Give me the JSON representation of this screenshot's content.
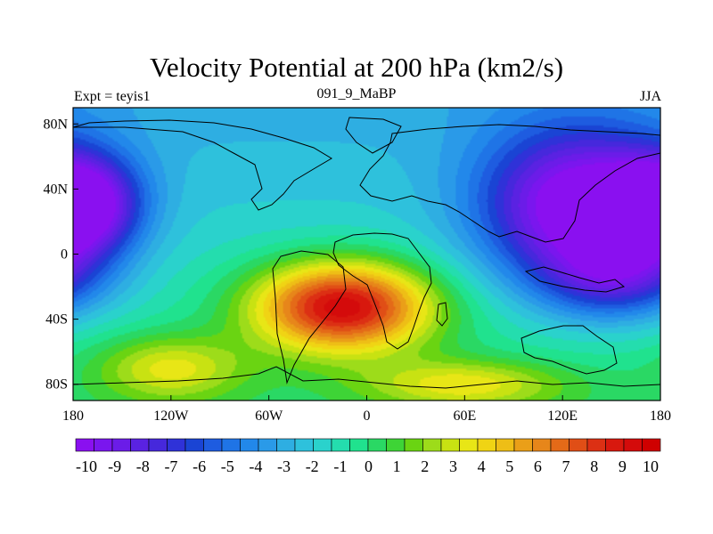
{
  "chart_data": {
    "type": "heatmap",
    "title": "Velocity Potential at 200 hPa (km2/s)",
    "left_label": "Expt = teyis1",
    "center_label": "091_9_MaBP",
    "right_label": "JJA",
    "x_range": [
      -180,
      180
    ],
    "y_range": [
      -90,
      90
    ],
    "x_ticks": [
      {
        "value": -180,
        "label": "180"
      },
      {
        "value": -120,
        "label": "120W"
      },
      {
        "value": -60,
        "label": "60W"
      },
      {
        "value": 0,
        "label": "0"
      },
      {
        "value": 60,
        "label": "60E"
      },
      {
        "value": 120,
        "label": "120E"
      },
      {
        "value": 180,
        "label": "180"
      }
    ],
    "y_ticks": [
      {
        "value": 80,
        "label": "80N"
      },
      {
        "value": 40,
        "label": "40N"
      },
      {
        "value": 0,
        "label": "0"
      },
      {
        "value": -40,
        "label": "40S"
      },
      {
        "value": -80,
        "label": "80S"
      }
    ],
    "colorbar": {
      "min": -11,
      "max": 11,
      "levels": [
        "-10",
        "-9",
        "-8",
        "-7",
        "-6",
        "-5",
        "-4",
        "-3",
        "-2",
        "-1",
        "0",
        "1",
        "2",
        "3",
        "4",
        "5",
        "6",
        "7",
        "8",
        "9",
        "10"
      ],
      "colors": [
        "#8a10f0",
        "#7a16ee",
        "#6b1ce8",
        "#5a22e2",
        "#4628dc",
        "#2f32d8",
        "#1a44d4",
        "#1e5ce0",
        "#1f74e6",
        "#2288ea",
        "#2a9ae8",
        "#2eaee2",
        "#2ec1dc",
        "#2ad2cc",
        "#24ddae",
        "#20e28e",
        "#2ad864",
        "#3ed436",
        "#6ad412",
        "#9ddc1a",
        "#c8e212",
        "#e8e616",
        "#f0d414",
        "#eebe16",
        "#ea9f18",
        "#e7861a",
        "#e46a18",
        "#e04e16",
        "#dc3014",
        "#d8180e",
        "#d40b0b",
        "#cf0000"
      ]
    },
    "field_centers": [
      {
        "lon": -15,
        "lat": -32,
        "value": 11,
        "rx": 55,
        "ry": 28
      },
      {
        "lon": 130,
        "lat": 28,
        "value": -10,
        "rx": 60,
        "ry": 48
      },
      {
        "lon": -175,
        "lat": 30,
        "value": -9,
        "rx": 35,
        "ry": 30
      },
      {
        "lon": 155,
        "lat": -15,
        "value": -5,
        "rx": 45,
        "ry": 25
      },
      {
        "lon": -120,
        "lat": -70,
        "value": 4,
        "rx": 45,
        "ry": 20
      },
      {
        "lon": 60,
        "lat": -80,
        "value": 4,
        "rx": 60,
        "ry": 15
      }
    ]
  }
}
